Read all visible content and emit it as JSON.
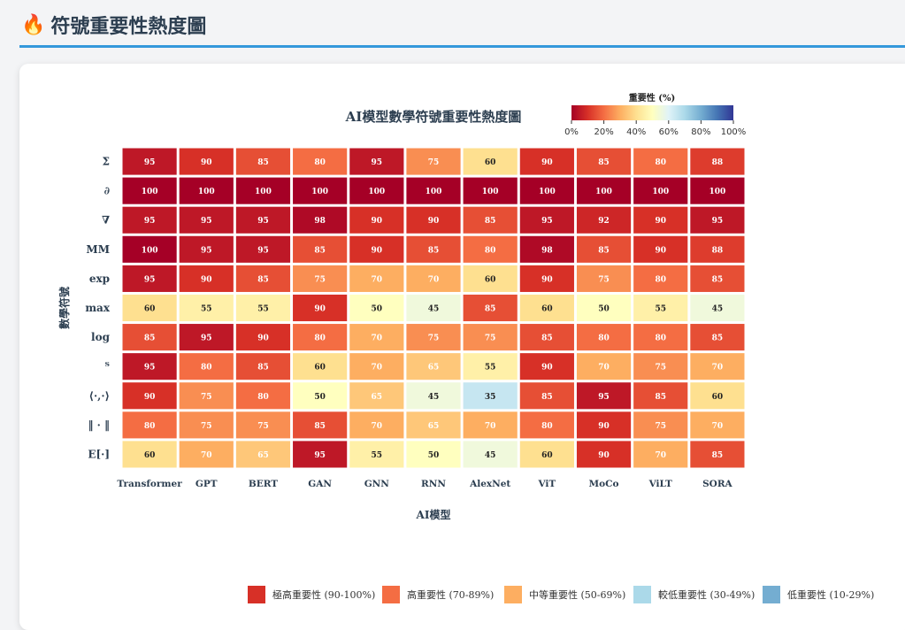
{
  "header": {
    "icon": "fire-icon",
    "title": "符號重要性熱度圖"
  },
  "chart_data": {
    "type": "heatmap",
    "title": "AI模型數學符號重要性熱度圖",
    "xlabel": "AI模型",
    "ylabel": "數學符號",
    "x": [
      "Transformer",
      "GPT",
      "BERT",
      "GAN",
      "GNN",
      "RNN",
      "AlexNet",
      "ViT",
      "MoCo",
      "ViLT",
      "SORA"
    ],
    "y": [
      "Σ",
      "∂",
      "∇",
      "MM",
      "exp",
      "max",
      "log",
      "ᵀ",
      "⟨·,·⟩",
      "‖ · ‖",
      "E[·]"
    ],
    "values": [
      [
        95,
        90,
        85,
        80,
        95,
        75,
        60,
        90,
        85,
        80,
        88
      ],
      [
        100,
        100,
        100,
        100,
        100,
        100,
        100,
        100,
        100,
        100,
        100
      ],
      [
        95,
        95,
        95,
        98,
        90,
        90,
        85,
        95,
        92,
        90,
        95
      ],
      [
        100,
        95,
        95,
        85,
        90,
        85,
        80,
        98,
        85,
        90,
        88
      ],
      [
        95,
        90,
        85,
        75,
        70,
        70,
        60,
        90,
        75,
        80,
        85
      ],
      [
        60,
        55,
        55,
        90,
        50,
        45,
        85,
        60,
        50,
        55,
        45
      ],
      [
        85,
        95,
        90,
        80,
        70,
        75,
        75,
        85,
        80,
        80,
        85
      ],
      [
        95,
        80,
        85,
        60,
        70,
        65,
        55,
        90,
        70,
        75,
        70
      ],
      [
        90,
        75,
        80,
        50,
        65,
        45,
        35,
        85,
        95,
        85,
        60
      ],
      [
        80,
        75,
        75,
        85,
        70,
        65,
        70,
        80,
        90,
        75,
        70
      ],
      [
        60,
        70,
        65,
        95,
        55,
        50,
        45,
        60,
        90,
        70,
        85
      ]
    ],
    "colorscale": "RdYlBu (reversed: high = red)",
    "colorbar": {
      "title": "重要性 (%)",
      "ticks": [
        "0%",
        "20%",
        "40%",
        "60%",
        "80%",
        "100%"
      ],
      "range": [
        0,
        100
      ]
    }
  },
  "legend": [
    {
      "label": "極高重要性 (90-100%)",
      "color": "#d73027"
    },
    {
      "label": "高重要性 (70-89%)",
      "color": "#f46d43"
    },
    {
      "label": "中等重要性 (50-69%)",
      "color": "#fdae61"
    },
    {
      "label": "較低重要性 (30-49%)",
      "color": "#abd9e9"
    },
    {
      "label": "低重要性 (10-29%)",
      "color": "#74add1"
    }
  ]
}
